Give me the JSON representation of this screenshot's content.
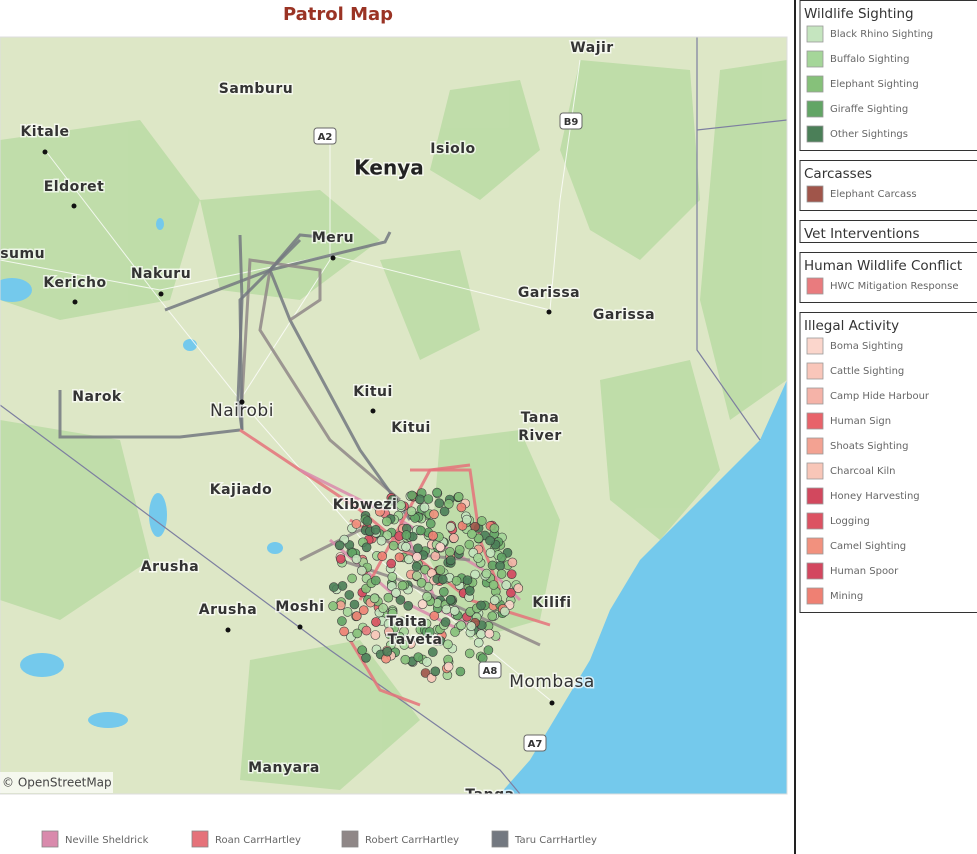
{
  "title": "Patrol Map",
  "map": {
    "attribution": "© OpenStreetMap",
    "places": [
      {
        "label": "Wajir"
      },
      {
        "label": "Samburu"
      },
      {
        "label": "Kitale"
      },
      {
        "label": "Kenya"
      },
      {
        "label": "Isiolo"
      },
      {
        "label": "Eldoret"
      },
      {
        "label": "Meru"
      },
      {
        "label": "isumu"
      },
      {
        "label": "Nakuru"
      },
      {
        "label": "Kericho"
      },
      {
        "label": "Garissa"
      },
      {
        "label": "Garissa"
      },
      {
        "label": "Narok"
      },
      {
        "label": "Kitui"
      },
      {
        "label": "Nairobi"
      },
      {
        "label": "Kitui"
      },
      {
        "label": "Tana"
      },
      {
        "label": "River"
      },
      {
        "label": "Kajiado"
      },
      {
        "label": "Kibwezi"
      },
      {
        "label": "Arusha"
      },
      {
        "label": "Kilifi"
      },
      {
        "label": "Arusha"
      },
      {
        "label": "Moshi"
      },
      {
        "label": "Taita"
      },
      {
        "label": "Taveta"
      },
      {
        "label": "Mombasa"
      },
      {
        "label": "Manyara"
      },
      {
        "label": "Tanga"
      }
    ],
    "roads": [
      "A2",
      "B9",
      "A8",
      "A7"
    ]
  },
  "legend_panels": [
    {
      "title": "Wildlife Sighting",
      "items": [
        {
          "label": "Black Rhino Sighting",
          "color": "#c5e5bf"
        },
        {
          "label": "Buffalo Sighting",
          "color": "#a5d699"
        },
        {
          "label": "Elephant Sighting",
          "color": "#86c17a"
        },
        {
          "label": "Giraffe Sighting",
          "color": "#62a565"
        },
        {
          "label": "Other Sightings",
          "color": "#4b7f58"
        }
      ]
    },
    {
      "title": "Carcasses",
      "items": [
        {
          "label": "Elephant Carcass",
          "color": "#a0554a"
        }
      ]
    },
    {
      "title": "Vet Interventions",
      "items": []
    },
    {
      "title": "Human Wildlife Conflict",
      "items": [
        {
          "label": "HWC Mitigation Response",
          "color": "#e97b7e"
        }
      ]
    },
    {
      "title": "Illegal Activity",
      "items": [
        {
          "label": "Boma Sighting",
          "color": "#fbd6cc"
        },
        {
          "label": "Cattle Sighting",
          "color": "#f9c6ba"
        },
        {
          "label": "Camp Hide Harbour",
          "color": "#f5b3a8"
        },
        {
          "label": "Human Sign",
          "color": "#e8636a"
        },
        {
          "label": "Shoats Sighting",
          "color": "#f3a292"
        },
        {
          "label": "Charcoal Kiln",
          "color": "#f8c6b8"
        },
        {
          "label": "Honey Harvesting",
          "color": "#d2485e"
        },
        {
          "label": "Logging",
          "color": "#dc5262"
        },
        {
          "label": "Camel Sighting",
          "color": "#f2917e"
        },
        {
          "label": "Human Spoor",
          "color": "#d3475f"
        },
        {
          "label": "Mining",
          "color": "#ef8073"
        }
      ]
    }
  ],
  "patrol_legend": [
    {
      "label": "Neville Sheldrick",
      "color": "#d98aac"
    },
    {
      "label": "Roan CarrHartley",
      "color": "#e5727a"
    },
    {
      "label": "Robert CarrHartley",
      "color": "#8f8787"
    },
    {
      "label": "Taru CarrHartley",
      "color": "#737880"
    }
  ]
}
